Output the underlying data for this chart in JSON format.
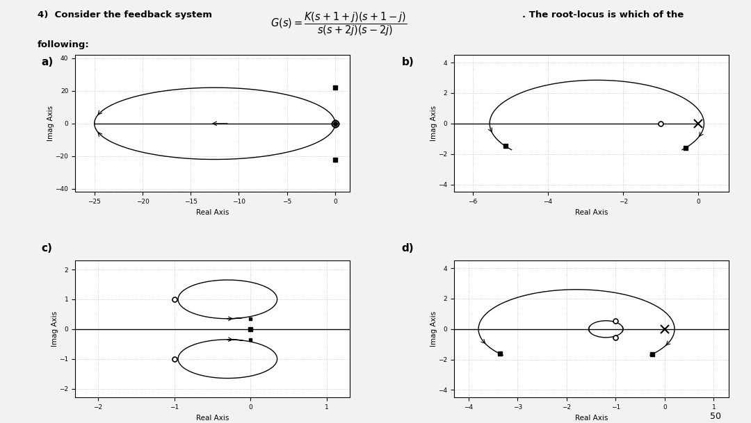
{
  "bg_color": "#f2f2f2",
  "subplots": {
    "a": {
      "label": "a)",
      "xlim": [
        -27,
        1.5
      ],
      "ylim": [
        -42,
        42
      ],
      "xticks": [
        -25,
        -20,
        -15,
        -10,
        -5,
        0
      ],
      "yticks": [
        -40,
        -20,
        0,
        20,
        40
      ],
      "xlabel": "Real Axis",
      "ylabel": "Imag Axis"
    },
    "b": {
      "label": "b)",
      "xlim": [
        -6.5,
        0.8
      ],
      "ylim": [
        -4.5,
        4.5
      ],
      "xticks": [
        -6,
        -4,
        -2,
        0
      ],
      "yticks": [
        -4,
        -2,
        0,
        2,
        4
      ],
      "xlabel": "Real Axis",
      "ylabel": "Imag Axis"
    },
    "c": {
      "label": "c)",
      "xlim": [
        -2.3,
        1.3
      ],
      "ylim": [
        -2.3,
        2.3
      ],
      "xticks": [
        -2,
        -1,
        0,
        1
      ],
      "yticks": [
        -2,
        -1,
        0,
        1,
        2
      ],
      "xlabel": "Real Axis",
      "ylabel": "Imag Axis"
    },
    "d": {
      "label": "d)",
      "xlim": [
        -4.3,
        1.3
      ],
      "ylim": [
        -4.5,
        4.5
      ],
      "xticks": [
        -4,
        -3,
        -2,
        -1,
        0,
        1
      ],
      "yticks": [
        -4,
        -2,
        0,
        2,
        4
      ],
      "xlabel": "Real Axis",
      "ylabel": "Imag Axis"
    }
  }
}
